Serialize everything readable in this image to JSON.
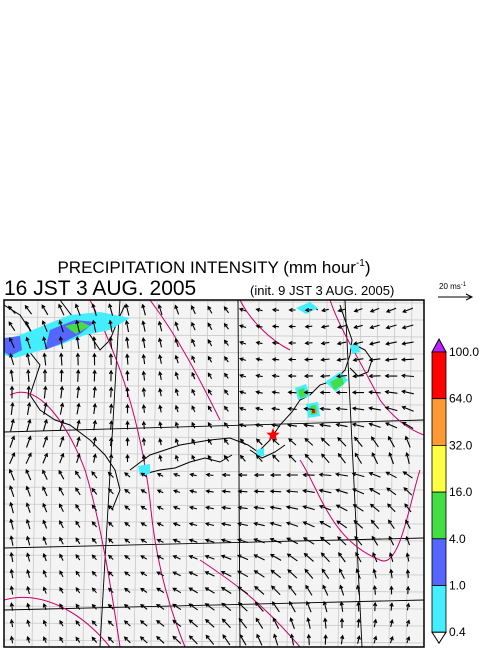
{
  "header": {
    "title": {
      "text": "PRECIPITATION INTENSITY (mm hour",
      "superscript": "-1",
      "close": ")"
    },
    "valid_time": "16 JST 3 AUG. 2005",
    "init_time": "(init. 9 JST 3 AUG. 2005)",
    "wind_scale": {
      "text": "20 ms",
      "superscript": "-1"
    }
  },
  "colorbar": {
    "levels": [
      {
        "value": 100,
        "label": "100.0"
      },
      {
        "value": 64,
        "label": "64.0"
      },
      {
        "value": 32,
        "label": "32.0"
      },
      {
        "value": 16,
        "label": "16.0"
      },
      {
        "value": 4,
        "label": "4.0"
      },
      {
        "value": 1,
        "label": "1.0"
      },
      {
        "value": 0.4,
        "label": "0.4"
      }
    ],
    "colors": [
      "#ff0000",
      "#ff9933",
      "#ffff44",
      "#44dd44",
      "#5566ff",
      "#44eeff"
    ],
    "over_color": "#bb22ff",
    "under_color": "#ffffff"
  }
}
